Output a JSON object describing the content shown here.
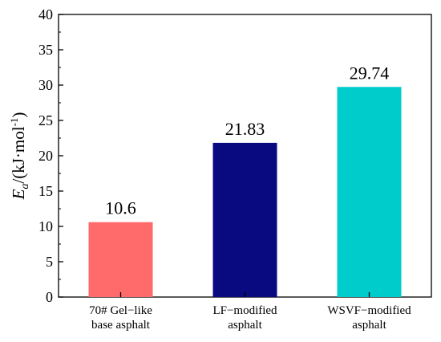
{
  "chart_data": {
    "type": "bar",
    "categories": [
      [
        "70# Gel−like",
        "base asphalt"
      ],
      [
        "LF−modified",
        "asphalt"
      ],
      [
        "WSVF−modified",
        "asphalt"
      ]
    ],
    "values": [
      10.6,
      21.83,
      29.74
    ],
    "data_labels": [
      "10.6",
      "21.83",
      "29.74"
    ],
    "colors": [
      "#FF6B6B",
      "#0A0A80",
      "#00CCCC"
    ],
    "ylabel": {
      "symbol": "E",
      "subscript": "a",
      "unit_prefix": "/(kJ·mol",
      "superscript": "-1",
      "unit_suffix": ")"
    },
    "ylim": [
      0,
      40
    ],
    "yticks": [
      0,
      5,
      10,
      15,
      20,
      25,
      30,
      35,
      40
    ],
    "ytick_labels": [
      "0",
      "5",
      "10",
      "15",
      "20",
      "25",
      "30",
      "35",
      "40"
    ],
    "grid": false,
    "legend": "none"
  }
}
